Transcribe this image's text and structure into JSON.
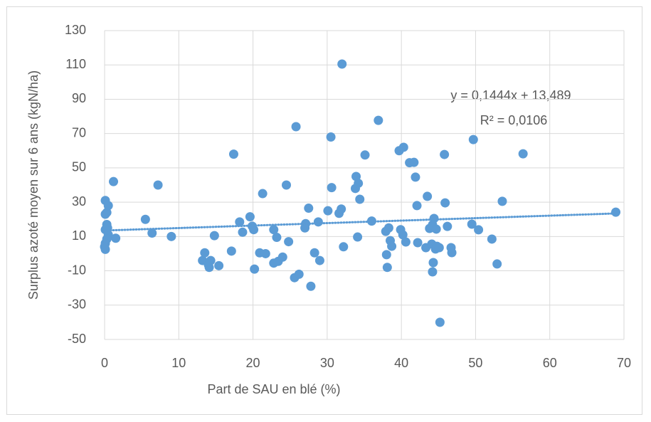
{
  "chart_data": {
    "type": "scatter",
    "x_label": "Part de SAU en blé (%)",
    "y_label": "Surplus azoté moyen sur 6 ans (kgN/ha)",
    "xlim": [
      0,
      70
    ],
    "xticks": [
      0,
      10,
      20,
      30,
      40,
      50,
      60,
      70
    ],
    "ylim": [
      -50,
      130
    ],
    "yticks": [
      -50,
      -30,
      -10,
      10,
      30,
      50,
      70,
      90,
      110,
      130
    ],
    "grid": true,
    "color": "#5b9bd5",
    "x": [
      0.1,
      0.3,
      0.1,
      0.5,
      0.3,
      0.4,
      0.1,
      0.5,
      0.3,
      0.1,
      0.1,
      0,
      1.5,
      1.2,
      5.5,
      6.4,
      7.2,
      9,
      13.2,
      13.5,
      14,
      14.3,
      14.1,
      14.8,
      15.4,
      17.1,
      17.4,
      18.2,
      18.6,
      19.6,
      19.9,
      20.1,
      20.2,
      20.9,
      21.3,
      21.7,
      22.8,
      22.8,
      23.2,
      23.4,
      24,
      24.5,
      24.8,
      25.8,
      25.6,
      26.2,
      27,
      27.1,
      27.5,
      27.8,
      28.3,
      28.8,
      29,
      30.1,
      30.6,
      30.5,
      31.6,
      31.9,
      32,
      32.2,
      33.8,
      33.9,
      34.2,
      34.4,
      34.1,
      35.1,
      36,
      36.9,
      37.9,
      38,
      38.1,
      38.3,
      38.5,
      38.7,
      39.7,
      40.3,
      39.9,
      40.2,
      40.6,
      41.1,
      41.7,
      41.9,
      42.1,
      42.2,
      43.3,
      43.5,
      43.8,
      44.1,
      44.2,
      44.3,
      44.2,
      44.4,
      44.7,
      44.6,
      44.8,
      45.1,
      45.2,
      45.8,
      45.9,
      46.2,
      46.7,
      46.8,
      49.7,
      49.5,
      50.4,
      52.2,
      52.9,
      53.6,
      56.4,
      68.9
    ],
    "values": [
      31,
      24,
      23,
      28,
      17,
      15,
      14,
      11,
      8.5,
      6,
      2.5,
      4,
      9,
      42,
      20,
      12,
      40,
      10,
      -4,
      0.5,
      -6.5,
      -4,
      -8,
      10.5,
      -7,
      1.5,
      58,
      18.5,
      12.5,
      21.5,
      16,
      14,
      -9,
      0.5,
      35,
      0,
      14,
      -5.5,
      9.5,
      -4.5,
      -2,
      40,
      7,
      74,
      -14,
      -12,
      15,
      17.5,
      26.5,
      -19,
      0.5,
      18.5,
      -4,
      25,
      38.5,
      68,
      23.5,
      26,
      110.5,
      4,
      38,
      45,
      41,
      31.7,
      9.7,
      57.5,
      19,
      77.7,
      13,
      -0.6,
      -8,
      15,
      7.6,
      4.3,
      60,
      62,
      14,
      11,
      6.8,
      53,
      53.2,
      44.6,
      28,
      6.4,
      3.5,
      33.4,
      14.7,
      5.6,
      -10.6,
      -5.2,
      16.8,
      20.5,
      14.3,
      2.7,
      4.3,
      3.5,
      -40,
      57.8,
      29.6,
      15.9,
      3.5,
      0.6,
      66.5,
      17.2,
      13.9,
      8.5,
      -6,
      30.5,
      58.2,
      24.2
    ],
    "trendline": {
      "slope": 0.1444,
      "intercept": 13.489,
      "equation_label": "y = 0,1444x + 13,489",
      "r2_label": "R² = 0,0106"
    }
  }
}
